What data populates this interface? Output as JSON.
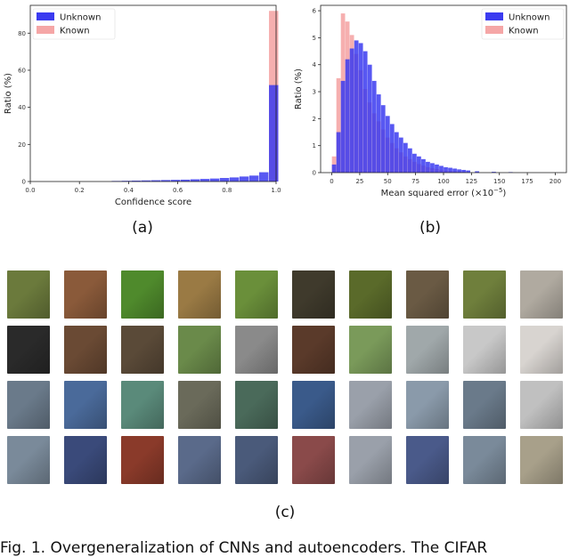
{
  "chart_data": [
    {
      "type": "bar",
      "xlabel": "Confidence score",
      "ylabel": "Ratio (%)",
      "xlim": [
        0.0,
        1.0
      ],
      "ylim": [
        0,
        95
      ],
      "xticks": [
        "0.0",
        "0.2",
        "0.4",
        "0.6",
        "0.8",
        "1.0"
      ],
      "yticks": [
        "0",
        "20",
        "40",
        "60",
        "80"
      ],
      "legend": "top-left",
      "x": [
        0.35,
        0.39,
        0.43,
        0.47,
        0.51,
        0.55,
        0.59,
        0.63,
        0.67,
        0.71,
        0.75,
        0.79,
        0.83,
        0.87,
        0.91,
        0.95,
        0.99
      ],
      "series": [
        {
          "name": "Unknown",
          "color": "#3b3bf0",
          "values": [
            0.3,
            0.4,
            0.5,
            0.6,
            0.7,
            0.8,
            0.9,
            1.0,
            1.2,
            1.4,
            1.6,
            1.9,
            2.2,
            2.7,
            3.2,
            5,
            52
          ]
        },
        {
          "name": "Known",
          "color": "#f5a6a6",
          "values": [
            0,
            0,
            0,
            0,
            0,
            0,
            0,
            0,
            0,
            0,
            0,
            0,
            0,
            0,
            0.1,
            0.3,
            92
          ]
        }
      ]
    },
    {
      "type": "bar",
      "xlabel": "Mean squared error (×10",
      "xlabel_exp": "−5",
      "xlabel_end": ")",
      "ylabel": "Ratio (%)",
      "xlim": [
        -10,
        210
      ],
      "ylim": [
        0,
        6.2
      ],
      "xticks": [
        "0",
        "25",
        "50",
        "75",
        "100",
        "125",
        "150",
        "175",
        "200"
      ],
      "yticks": [
        "0",
        "1",
        "2",
        "3",
        "4",
        "5",
        "6"
      ],
      "legend": "top-right",
      "x": [
        2,
        6,
        10,
        14,
        18,
        22,
        26,
        30,
        34,
        38,
        42,
        46,
        50,
        54,
        58,
        62,
        66,
        70,
        74,
        78,
        82,
        86,
        90,
        94,
        98,
        102,
        106,
        110,
        114,
        118,
        122,
        130,
        145,
        160
      ],
      "series": [
        {
          "name": "Unknown",
          "color": "#3b3bf0",
          "values": [
            0.3,
            1.5,
            3.4,
            4.2,
            4.6,
            4.9,
            4.8,
            4.5,
            4.0,
            3.4,
            2.9,
            2.5,
            2.1,
            1.8,
            1.5,
            1.3,
            1.1,
            0.9,
            0.7,
            0.6,
            0.5,
            0.4,
            0.35,
            0.3,
            0.25,
            0.2,
            0.18,
            0.15,
            0.12,
            0.1,
            0.08,
            0.05,
            0.03,
            0.02
          ]
        },
        {
          "name": "Known",
          "color": "#f5a6a6",
          "values": [
            0.6,
            3.5,
            5.9,
            5.6,
            5.1,
            4.4,
            3.8,
            3.1,
            2.6,
            2.2,
            1.9,
            1.6,
            1.3,
            1.1,
            0.9,
            0.75,
            0.6,
            0.5,
            0.4,
            0.32,
            0.26,
            0.2,
            0.16,
            0.13,
            0.1,
            0.08,
            0.06,
            0.05,
            0.04,
            0.03,
            0.02,
            0.01,
            0.005,
            0.0
          ]
        }
      ]
    }
  ],
  "labels": {
    "a": "(a)",
    "b": "(b)",
    "c": "(c)"
  },
  "caption": "Fig. 1. Overgeneralization of CNNs and autoencoders. The CIFAR",
  "thumbnails": [
    [
      "#6b7a3c",
      "#8a5a3a",
      "#4f8a2c",
      "#9a7a44",
      "#6a8f3a",
      "#3f3a2c",
      "#5a6a2a",
      "#6a5a44",
      "#6f7f3c",
      "#b0aaa0"
    ],
    [
      "#2a2a2a",
      "#6a4a34",
      "#5a4a38",
      "#6a8a4a",
      "#8a8a8a",
      "#5a3a2a",
      "#7a9a5a",
      "#a0a8aa",
      "#c8c8c8",
      "#d8d4d0"
    ],
    [
      "#6a7a8a",
      "#4a6a9a",
      "#5a8a7a",
      "#6a6a5a",
      "#4a6a5a",
      "#3a5a8a",
      "#9aa0aa",
      "#8a9aaa",
      "#6a7a8a",
      "#c0c0c0"
    ],
    [
      "#7a8a9a",
      "#3a4a7a",
      "#8a3a2a",
      "#5a6a8a",
      "#4a5a7a",
      "#8a4a4a",
      "#9aa0aa",
      "#4a5a8a",
      "#7a8a9a",
      "#a8a08a"
    ]
  ]
}
